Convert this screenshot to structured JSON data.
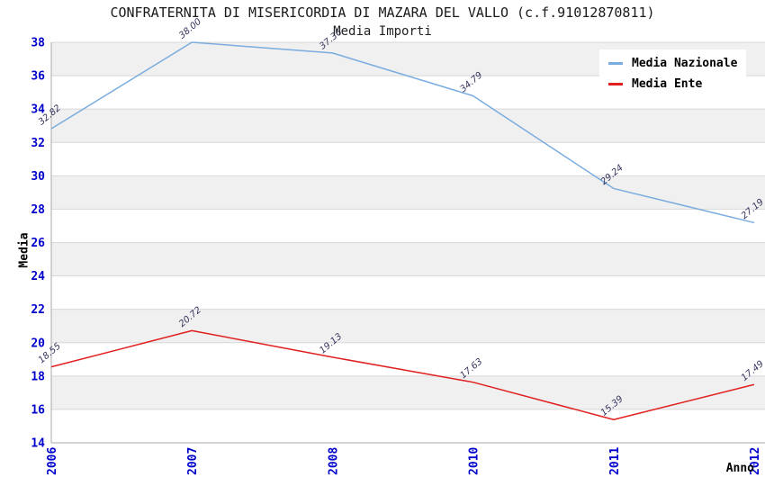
{
  "header": {
    "title": "CONFRATERNITA DI MISERICORDIA DI MAZARA DEL VALLO (c.f.91012870811)",
    "subtitle": "Media Importi"
  },
  "axes": {
    "x_label": "Anno",
    "y_label": "Media"
  },
  "chart_data": {
    "type": "line",
    "title": "CONFRATERNITA DI MISERICORDIA DI MAZARA DEL VALLO (c.f.91012870811)",
    "subtitle": "Media Importi",
    "xlabel": "Anno",
    "ylabel": "Media",
    "categories": [
      "2006",
      "2007",
      "2008",
      "2010",
      "2011",
      "2012"
    ],
    "series": [
      {
        "name": "Media Nazionale",
        "color": "#7aacdf",
        "values": [
          32.82,
          38.0,
          37.36,
          34.79,
          29.24,
          27.19
        ],
        "labels": [
          "32.82",
          "38.00",
          "37.36",
          "34.79",
          "29.24",
          "27.19"
        ]
      },
      {
        "name": "Media Ente",
        "color": "#e01f1f",
        "values": [
          18.55,
          20.72,
          19.13,
          17.63,
          15.39,
          17.49
        ],
        "labels": [
          "18.55",
          "20.72",
          "19.13",
          "17.63",
          "15.39",
          "17.49"
        ]
      }
    ],
    "ylim": [
      14,
      38
    ],
    "ytick_step": 2,
    "yticks": [
      14,
      16,
      18,
      20,
      22,
      24,
      26,
      28,
      30,
      32,
      34,
      36,
      38
    ],
    "grid": "horizontal-bands",
    "legend_position": "top-right",
    "style": {
      "band_color": "#f0f0f0",
      "grid_color": "#d8d8d8",
      "axis_line_color": "#aaaaaa",
      "tick_label_color": "#0000cc",
      "point_label_color": "#33335c",
      "background": "#ffffff"
    }
  }
}
